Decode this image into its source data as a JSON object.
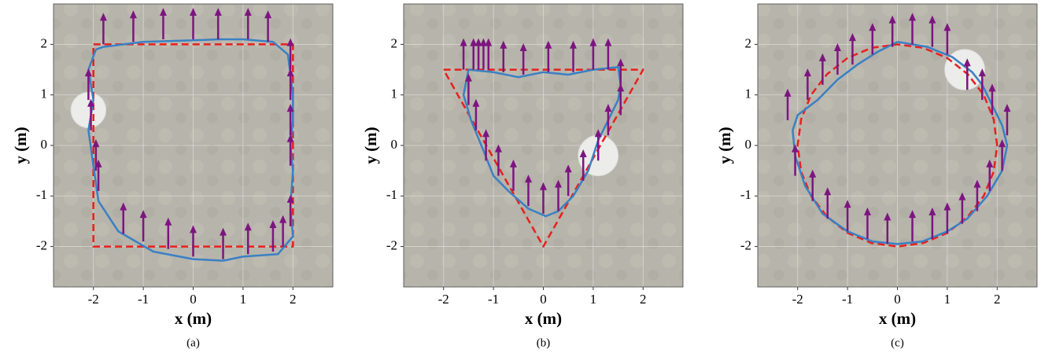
{
  "chart_data": [
    {
      "type": "line",
      "caption": "(a)",
      "xlabel": "x (m)",
      "ylabel": "y (m)",
      "xlim": [
        -2.8,
        2.8
      ],
      "ylim": [
        -2.8,
        2.8
      ],
      "xticks": [
        -2,
        -1,
        0,
        1,
        2
      ],
      "yticks": [
        -2,
        -1,
        0,
        1,
        2
      ],
      "grid": true,
      "series": [
        {
          "color": "#e8201c",
          "dash": true,
          "x": [
            -2,
            2,
            2,
            -2,
            -2
          ],
          "values": [
            2,
            2,
            -2,
            -2,
            2
          ]
        },
        {
          "color": "#3a80c4",
          "x": [
            -1.8,
            -1,
            0,
            0.5,
            1,
            1.6,
            1.9,
            2.0,
            2.0,
            1.95,
            2.0,
            1.95,
            2.0,
            1.7,
            1,
            0.6,
            0,
            -0.8,
            -1.5,
            -1.9,
            -2.0,
            -2.1,
            -2.0,
            -2.1,
            -1.95,
            -1.8
          ],
          "values": [
            1.95,
            2.05,
            2.08,
            2.1,
            2.1,
            2.05,
            1.8,
            1.0,
            0.5,
            0,
            -0.5,
            -1.2,
            -1.8,
            -2.15,
            -2.2,
            -2.28,
            -2.25,
            -2.1,
            -1.7,
            -1.1,
            -0.4,
            0.3,
            0.9,
            1.5,
            1.9,
            1.95
          ]
        }
      ],
      "arrows": {
        "color": "#7d1580",
        "x": [
          -1.8,
          -1.2,
          -0.6,
          0,
          0.5,
          1.1,
          1.5,
          1.95,
          1.95,
          1.95,
          1.95,
          1.95,
          1.8,
          1.6,
          1.1,
          0.6,
          0,
          -0.5,
          -1,
          -1.4,
          -1.9,
          -1.95,
          -2.05,
          -2.1
        ],
        "values": [
          2.0,
          2.05,
          2.1,
          2.1,
          2.1,
          2.1,
          2.05,
          1.5,
          0.9,
          0.2,
          -0.4,
          -1.6,
          -2.0,
          -2.1,
          -2.15,
          -2.25,
          -2.2,
          -2.05,
          -1.9,
          -1.75,
          -0.9,
          -0.5,
          0.3,
          0.9
        ]
      },
      "obstacle": {
        "x": -2.1,
        "y": 0.7,
        "r": 0.35
      }
    },
    {
      "type": "line",
      "caption": "(b)",
      "xlabel": "x (m)",
      "ylabel": "y (m)",
      "xlim": [
        -2.8,
        2.8
      ],
      "ylim": [
        -2.8,
        2.8
      ],
      "xticks": [
        -2,
        -1,
        0,
        1,
        2
      ],
      "yticks": [
        -2,
        -1,
        0,
        1,
        2
      ],
      "grid": true,
      "series": [
        {
          "color": "#e8201c",
          "dash": true,
          "x": [
            -2,
            2,
            0,
            -2
          ],
          "values": [
            1.5,
            1.5,
            -2,
            1.5
          ]
        },
        {
          "color": "#3a80c4",
          "x": [
            -1.5,
            -1,
            -0.5,
            0,
            0.5,
            1,
            1.5,
            1.55,
            1.5,
            1.3,
            1.1,
            0.9,
            0.6,
            0.3,
            0.05,
            -0.3,
            -0.7,
            -1.0,
            -1.2,
            -1.45,
            -1.6,
            -1.5
          ],
          "values": [
            1.5,
            1.45,
            1.35,
            1.45,
            1.4,
            1.5,
            1.55,
            1.2,
            0.9,
            0.5,
            0.1,
            -0.5,
            -1.0,
            -1.3,
            -1.4,
            -1.25,
            -0.9,
            -0.6,
            -0.1,
            0.5,
            1.0,
            1.5
          ]
        }
      ],
      "arrows": {
        "color": "#7d1580",
        "x": [
          -1.6,
          -1.4,
          -1.3,
          -1.2,
          -1.1,
          -0.8,
          -0.4,
          0.1,
          0.6,
          1.0,
          1.3,
          1.55,
          1.55,
          1.3,
          1.1,
          0.8,
          0.5,
          0.3,
          0,
          -0.3,
          -0.6,
          -0.9,
          -1.15,
          -1.35,
          -1.5
        ],
        "values": [
          1.5,
          1.5,
          1.5,
          1.5,
          1.5,
          1.45,
          1.4,
          1.45,
          1.45,
          1.5,
          1.5,
          1.1,
          0.6,
          0.2,
          -0.3,
          -0.7,
          -1.0,
          -1.3,
          -1.35,
          -1.2,
          -0.9,
          -0.6,
          -0.3,
          0.3,
          0.8
        ]
      },
      "obstacle": {
        "x": 1.1,
        "y": -0.2,
        "r": 0.4
      }
    },
    {
      "type": "line",
      "caption": "(c)",
      "xlabel": "x (m)",
      "ylabel": "y (m)",
      "xlim": [
        -2.8,
        2.8
      ],
      "ylim": [
        -2.8,
        2.8
      ],
      "xticks": [
        -2,
        -1,
        0,
        1,
        2
      ],
      "yticks": [
        -2,
        -1,
        0,
        1,
        2
      ],
      "grid": true,
      "series": [
        {
          "color": "#e8201c",
          "dash": true,
          "x": [
            2,
            1.93,
            1.73,
            1.41,
            1,
            0.52,
            0,
            -0.52,
            -1,
            -1.41,
            -1.73,
            -1.93,
            -2,
            -1.93,
            -1.73,
            -1.41,
            -1,
            -0.52,
            0,
            0.52,
            1,
            1.41,
            1.73,
            1.93,
            2
          ],
          "values": [
            0,
            0.52,
            1,
            1.41,
            1.73,
            1.93,
            2,
            1.93,
            1.73,
            1.41,
            1,
            0.52,
            0,
            -0.52,
            -1,
            -1.41,
            -1.73,
            -1.93,
            -2,
            -1.93,
            -1.73,
            -1.41,
            -1,
            -0.52,
            0
          ]
        },
        {
          "color": "#3a80c4",
          "x": [
            0,
            0.6,
            1.1,
            1.5,
            1.7,
            1.9,
            2.1,
            2.2,
            2.1,
            1.8,
            1.4,
            1,
            0.5,
            0,
            -0.5,
            -1,
            -1.5,
            -1.85,
            -2.05,
            -2.1,
            -2.0,
            -1.6,
            -1.2,
            -0.8,
            -0.4,
            0
          ],
          "values": [
            2.05,
            1.95,
            1.75,
            1.45,
            1.2,
            0.8,
            0.4,
            0,
            -0.5,
            -1.0,
            -1.45,
            -1.7,
            -1.9,
            -1.95,
            -1.9,
            -1.7,
            -1.35,
            -0.8,
            -0.2,
            0.3,
            0.6,
            0.9,
            1.3,
            1.6,
            1.85,
            2.05
          ]
        }
      ],
      "arrows": {
        "color": "#7d1580",
        "x": [
          -2.2,
          -1.8,
          -1.5,
          -1.2,
          -0.9,
          -0.5,
          -0.1,
          0.3,
          0.7,
          1.0,
          1.4,
          1.7,
          1.9,
          2.2,
          2.1,
          1.85,
          1.6,
          1.3,
          1.0,
          0.7,
          0.3,
          -0.2,
          -0.6,
          -1.0,
          -1.4,
          -1.7,
          -2.05
        ],
        "values": [
          0.5,
          0.9,
          1.2,
          1.4,
          1.6,
          1.8,
          1.95,
          2.0,
          1.95,
          1.8,
          1.1,
          0.9,
          0.6,
          0.2,
          -0.5,
          -0.9,
          -1.3,
          -1.55,
          -1.75,
          -1.85,
          -1.9,
          -1.95,
          -1.85,
          -1.7,
          -1.45,
          -1.1,
          -0.6
        ]
      },
      "obstacle": {
        "x": 1.35,
        "y": 1.5,
        "r": 0.4
      }
    }
  ]
}
